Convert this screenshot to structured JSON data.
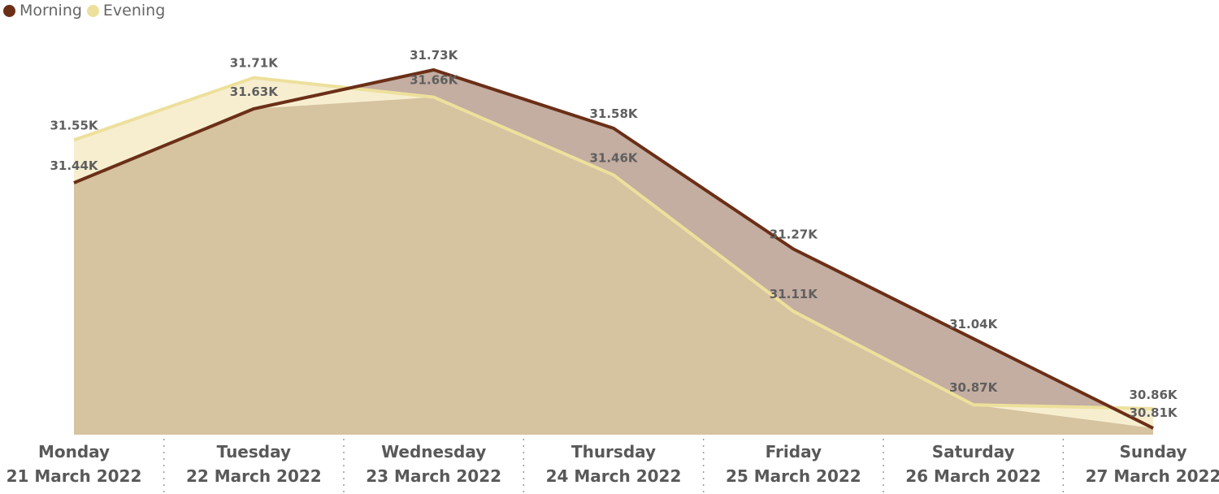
{
  "chart_data": {
    "type": "area",
    "categories": [
      [
        "Monday",
        "21 March 2022"
      ],
      [
        "Tuesday",
        "22 March 2022"
      ],
      [
        "Wednesday",
        "23 March 2022"
      ],
      [
        "Thursday",
        "24 March 2022"
      ],
      [
        "Friday",
        "25 March 2022"
      ],
      [
        "Saturday",
        "26 March 2022"
      ],
      [
        "Sunday",
        "27 March 2022"
      ]
    ],
    "series": [
      {
        "name": "Morning",
        "values": [
          31440,
          31630,
          31730,
          31580,
          31270,
          31040,
          30810
        ],
        "labels": [
          "31.44K",
          "31.63K",
          "31.73K",
          "31.58K",
          "31.27K",
          "31.04K",
          "30.81K"
        ],
        "line_color": "#6b2f17",
        "fill_color": "#c4ada1"
      },
      {
        "name": "Evening",
        "values": [
          31550,
          31710,
          31660,
          31460,
          31110,
          30870,
          30860
        ],
        "labels": [
          "31.55K",
          "31.71K",
          "31.66K",
          "31.46K",
          "31.11K",
          "30.87K",
          "30.86K"
        ],
        "line_color": "#ede09c",
        "fill_color": "#f7eed0"
      }
    ],
    "overlap_fill_color": "#d6c3a0",
    "legend": {
      "position": "top-left"
    },
    "grid": false,
    "ylim": [
      30800,
      31770
    ]
  }
}
